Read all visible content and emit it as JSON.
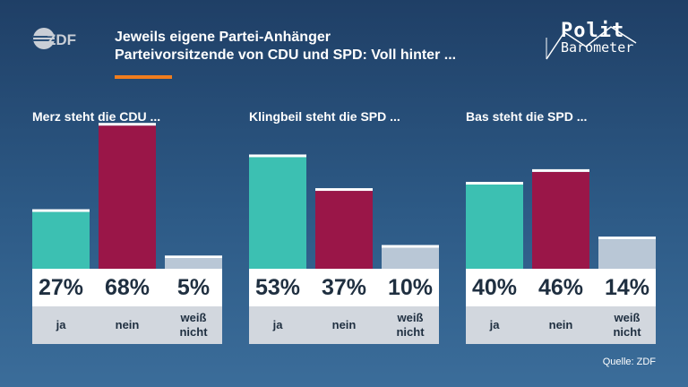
{
  "header": {
    "title_line1": "Jeweils eigene Partei-Anhänger",
    "title_line2": "Parteivorsitzende von CDU und SPD: Voll hinter ..."
  },
  "brand": {
    "zdf_logo": "ZDF",
    "polit_top": "Polit",
    "polit_bottom": "Barometer"
  },
  "source": "Quelle: ZDF",
  "colors": {
    "ja": "#3cc0b2",
    "nein": "#9a1648",
    "weiss_nicht": "#b9c7d6",
    "accent": "#f07d1e",
    "bar_cap": "#ffffff"
  },
  "chart_data": [
    {
      "type": "bar",
      "title": "Merz steht die CDU ...",
      "categories": [
        "ja",
        "nein",
        "weiß nicht"
      ],
      "values": [
        27,
        68,
        5
      ],
      "value_labels": [
        "27%",
        "68%",
        "5%"
      ],
      "ylim": [
        0,
        100
      ]
    },
    {
      "type": "bar",
      "title": "Klingbeil steht die SPD ...",
      "categories": [
        "ja",
        "nein",
        "weiß nicht"
      ],
      "values": [
        53,
        37,
        10
      ],
      "value_labels": [
        "53%",
        "37%",
        "10%"
      ],
      "ylim": [
        0,
        100
      ]
    },
    {
      "type": "bar",
      "title": "Bas steht die SPD ...",
      "categories": [
        "ja",
        "nein",
        "weiß nicht"
      ],
      "values": [
        40,
        46,
        14
      ],
      "value_labels": [
        "40%",
        "46%",
        "14%"
      ],
      "ylim": [
        0,
        100
      ]
    }
  ]
}
